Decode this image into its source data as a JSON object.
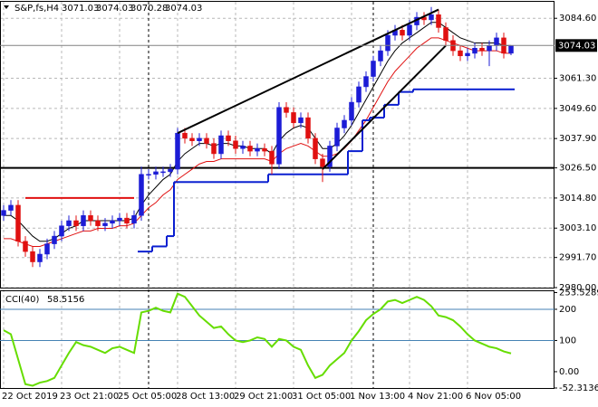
{
  "chart_data": [
    {
      "type": "candlestick",
      "title": "S&P,fs,H4",
      "categories": [
        "22 Oct 2019",
        null,
        null,
        null,
        null,
        null,
        null,
        null,
        "23 Oct 21:00",
        null,
        null,
        null,
        null,
        null,
        null,
        null,
        "25 Oct 05:00",
        null,
        null,
        null,
        null,
        null,
        null,
        null,
        "28 Oct 13:00",
        null,
        null,
        null,
        null,
        null,
        null,
        null,
        "29 Oct 21:00",
        null,
        null,
        null,
        null,
        null,
        null,
        null,
        "31 Oct 05:00",
        null,
        null,
        null,
        null,
        null,
        null,
        null,
        "1 Nov 13:00",
        null,
        null,
        null,
        null,
        null,
        null,
        null,
        "4 Nov 21:00",
        null,
        null,
        null,
        null,
        null,
        null,
        null,
        "6 Nov 05:00",
        null,
        null,
        null,
        null,
        null,
        null
      ],
      "open": [
        3008,
        3010,
        3012,
        2998,
        2994,
        2990,
        2993,
        2997,
        3000,
        3004,
        3006,
        3004,
        3008,
        3006,
        3004,
        3005,
        3006,
        3007,
        3005,
        3008,
        3024,
        3024,
        3025,
        3025,
        3026,
        3040,
        3038,
        3037,
        3038,
        3036,
        3032,
        3039,
        3037,
        3034,
        3035,
        3033,
        3034,
        3033,
        3028,
        3050,
        3048,
        3044,
        3046,
        3038,
        3030,
        3027,
        3035,
        3042,
        3045,
        3052,
        3058,
        3062,
        3068,
        3072,
        3078,
        3080,
        3078,
        3082,
        3085,
        3084,
        3086,
        3081,
        3076,
        3072,
        3070,
        3071,
        3073,
        3072,
        3074,
        3077,
        3071.03
      ],
      "high": [
        3012,
        3014,
        3014,
        3000,
        2996,
        2995,
        2999,
        3002,
        3006,
        3008,
        3008,
        3010,
        3010,
        3008,
        3007,
        3008,
        3009,
        3009,
        3010,
        3027,
        3026,
        3027,
        3027,
        3028,
        3042,
        3042,
        3040,
        3040,
        3040,
        3038,
        3041,
        3041,
        3039,
        3037,
        3037,
        3036,
        3036,
        3035,
        3052,
        3052,
        3050,
        3048,
        3048,
        3040,
        3032,
        3037,
        3044,
        3047,
        3054,
        3060,
        3064,
        3070,
        3074,
        3080,
        3082,
        3082,
        3084,
        3087,
        3087,
        3089,
        3088,
        3083,
        3078,
        3074,
        3073,
        3075,
        3075,
        3076,
        3079,
        3079,
        3074.03
      ],
      "low": [
        3006,
        3008,
        2996,
        2992,
        2988,
        2988,
        2991,
        2995,
        2998,
        3002,
        3002,
        3002,
        3004,
        3002,
        3002,
        3003,
        3004,
        3003,
        3003,
        3006,
        3022,
        3022,
        3023,
        3023,
        3024,
        3036,
        3035,
        3035,
        3034,
        3030,
        3030,
        3035,
        3032,
        3032,
        3031,
        3031,
        3031,
        3024,
        3026,
        3046,
        3042,
        3042,
        3036,
        3028,
        3021,
        3025,
        3033,
        3040,
        3043,
        3050,
        3056,
        3060,
        3066,
        3070,
        3076,
        3076,
        3076,
        3080,
        3082,
        3082,
        3079,
        3074,
        3070,
        3068,
        3068,
        3069,
        3070,
        3066,
        3072,
        3069,
        3070.28
      ],
      "close": [
        3010,
        3012,
        2998,
        2994,
        2990,
        2993,
        2997,
        3000,
        3004,
        3006,
        3004,
        3008,
        3006,
        3004,
        3005,
        3006,
        3007,
        3005,
        3008,
        3024,
        3024,
        3025,
        3025,
        3026,
        3040,
        3038,
        3037,
        3038,
        3036,
        3032,
        3039,
        3037,
        3034,
        3035,
        3033,
        3034,
        3033,
        3028,
        3050,
        3048,
        3044,
        3046,
        3038,
        3030,
        3027,
        3035,
        3042,
        3045,
        3052,
        3058,
        3062,
        3068,
        3072,
        3078,
        3080,
        3078,
        3082,
        3085,
        3084,
        3086,
        3081,
        3076,
        3072,
        3070,
        3071,
        3073,
        3072,
        3074,
        3077,
        3071.03,
        3074.03
      ],
      "up_color": "#1c1cd6",
      "down_color": "#e01010",
      "overlays": [
        {
          "color": "#000000",
          "style": "line",
          "values": [
            3008,
            3008,
            3006,
            3003,
            3000,
            2998,
            2998,
            2999,
            3001,
            3003,
            3004,
            3006,
            3006,
            3006,
            3006,
            3006,
            3006,
            3006,
            3007,
            3012,
            3016,
            3019,
            3022,
            3024,
            3029,
            3032,
            3034,
            3036,
            3036,
            3035,
            3036,
            3036,
            3035,
            3035,
            3034,
            3034,
            3034,
            3032,
            3037,
            3040,
            3042,
            3043,
            3042,
            3038,
            3034,
            3034,
            3036,
            3039,
            3043,
            3048,
            3053,
            3058,
            3063,
            3068,
            3072,
            3075,
            3077,
            3079,
            3081,
            3083,
            3083,
            3081,
            3079,
            3077,
            3076,
            3075,
            3075,
            3075,
            3075,
            3074,
            3074
          ]
        },
        {
          "color": "#e01010",
          "style": "line",
          "values": [
            2999,
            2999,
            2998,
            2997,
            2996,
            2996,
            2997,
            2998,
            2999,
            3000,
            3001,
            3002,
            3002,
            3003,
            3003,
            3003,
            3004,
            3004,
            3005,
            3008,
            3011,
            3013,
            3016,
            3018,
            3022,
            3024,
            3026,
            3028,
            3029,
            3029,
            3030,
            3030,
            3030,
            3030,
            3030,
            3030,
            3030,
            3029,
            3032,
            3034,
            3035,
            3036,
            3035,
            3033,
            3031,
            3031,
            3032,
            3034,
            3037,
            3041,
            3045,
            3050,
            3055,
            3060,
            3064,
            3067,
            3070,
            3073,
            3075,
            3077,
            3077,
            3076,
            3075,
            3074,
            3073,
            3072,
            3072,
            3072,
            3072,
            3071,
            3071
          ]
        },
        {
          "color": "#0a1fd0",
          "style": "step",
          "values": [
            null,
            null,
            null,
            null,
            null,
            null,
            null,
            null,
            null,
            null,
            null,
            null,
            null,
            null,
            null,
            null,
            null,
            null,
            null,
            2994,
            2994,
            2996,
            2996,
            3000,
            3021,
            3021,
            3021,
            3021,
            3021,
            3021,
            3021,
            3021,
            3021,
            3021,
            3021,
            3021,
            3021,
            3024,
            3024,
            3024,
            3024,
            3024,
            3024,
            3024,
            3024,
            3024,
            3024,
            3024,
            3033,
            3033,
            3045,
            3046,
            3046,
            3051,
            3051,
            3056,
            3056,
            3057,
            3057,
            3057,
            3057,
            3057,
            3057,
            3057,
            3057,
            3057,
            3057,
            3057,
            3057,
            3057,
            3057
          ]
        }
      ],
      "trendlines": [
        {
          "x": [
            24,
            60
          ],
          "y": [
            3040,
            3088
          ],
          "color": "#000000"
        },
        {
          "x": [
            44,
            61
          ],
          "y": [
            3026,
            3074
          ],
          "color": "#000000"
        }
      ],
      "hlines": [
        {
          "value": 3026.5,
          "color": "#000000"
        }
      ],
      "segments": [
        {
          "x": [
            3,
            18
          ],
          "value": 3014.8,
          "color": "#e01010"
        }
      ],
      "ylim": [
        2980,
        3091
      ],
      "yticks": [
        {
          "value": 3084.6,
          "label": "3084.60"
        },
        {
          "value": 3061.3,
          "label": "3061.30"
        },
        {
          "value": 3049.6,
          "label": "3049.60"
        },
        {
          "value": 3037.9,
          "label": "3037.90"
        },
        {
          "value": 3026.5,
          "label": "3026.50"
        },
        {
          "value": 3014.8,
          "label": "3014.80"
        },
        {
          "value": 3003.1,
          "label": "3003.10"
        },
        {
          "value": 2991.7,
          "label": "2991.70"
        },
        {
          "value": 2980,
          "label": "2980.00"
        }
      ],
      "grid": true
    },
    {
      "type": "line",
      "title": "CCI(40)",
      "color": "#66dd00",
      "values": [
        133,
        120,
        40,
        -40,
        -45,
        -35,
        -30,
        -20,
        20,
        60,
        95,
        85,
        80,
        70,
        60,
        75,
        80,
        70,
        60,
        190,
        195,
        205,
        195,
        190,
        250,
        240,
        210,
        180,
        160,
        140,
        145,
        120,
        100,
        95,
        100,
        110,
        105,
        80,
        105,
        100,
        80,
        70,
        20,
        -20,
        -10,
        20,
        40,
        60,
        100,
        130,
        165,
        185,
        200,
        225,
        230,
        220,
        230,
        240,
        230,
        210,
        180,
        175,
        165,
        145,
        120,
        100,
        90,
        80,
        75,
        65,
        58.5156
      ],
      "hlines": [
        {
          "value": 200,
          "color": "#4682b4"
        },
        {
          "value": 100,
          "color": "#4682b4"
        }
      ],
      "ylim": [
        -52.3136,
        253.5289
      ],
      "yticks": [
        253.5289,
        200,
        100,
        {
          "value": 0,
          "label": "0.00"
        },
        -52.3136
      ]
    }
  ]
}
